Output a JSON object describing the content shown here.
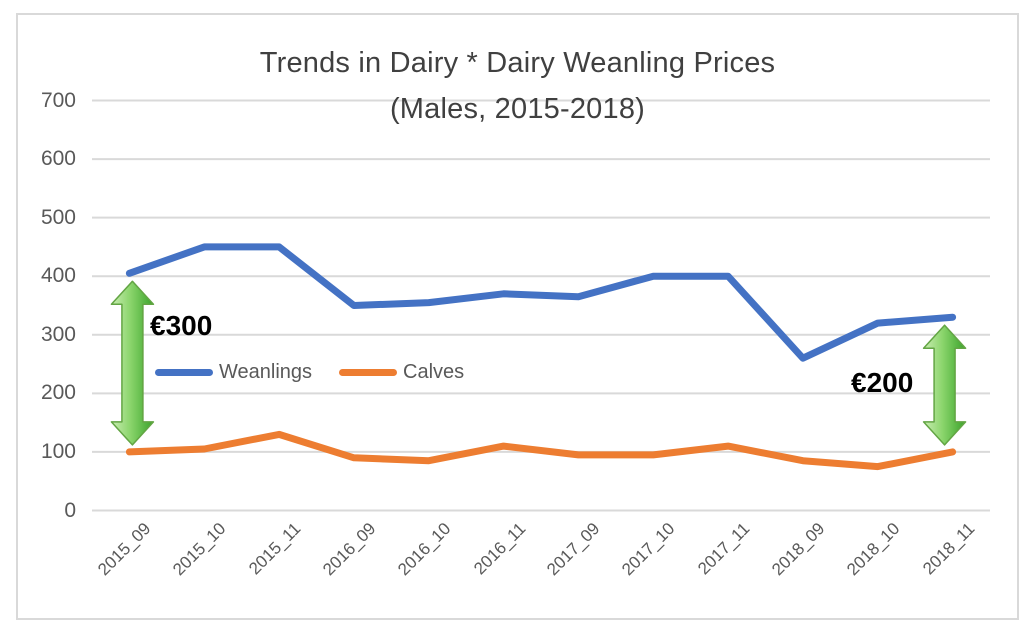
{
  "chart": {
    "title_line1": "Trends in Dairy * Dairy Weanling Prices",
    "title_line2": "(Males, 2015-2018)",
    "colors": {
      "title_text": "#404040",
      "axis_text": "#595959",
      "gridline": "#D9D9D9",
      "annotation_text": "#000000",
      "arrow_light_green": "#C9ECB2",
      "arrow_mid_green": "#8BD56C",
      "arrow_dark_green": "#3AA32B",
      "arrow_outline": "#63A544"
    }
  },
  "chart_data": {
    "type": "line",
    "title": "Trends in Dairy * Dairy Weanling Prices (Males, 2015-2018)",
    "categories": [
      "2015_09",
      "2015_10",
      "2015_11",
      "2016_09",
      "2016_10",
      "2016_11",
      "2017_09",
      "2017_10",
      "2017_11",
      "2018_09",
      "2018_10",
      "2018_11"
    ],
    "series": [
      {
        "name": "Weanlings",
        "color": "#4472C4",
        "values": [
          405,
          450,
          450,
          350,
          355,
          370,
          365,
          400,
          400,
          260,
          320,
          330
        ]
      },
      {
        "name": "Calves",
        "color": "#ED7D31",
        "values": [
          100,
          105,
          130,
          90,
          85,
          110,
          95,
          95,
          110,
          85,
          75,
          100
        ]
      }
    ],
    "ylim": [
      0,
      700
    ],
    "yticks": [
      0,
      100,
      200,
      300,
      400,
      500,
      600,
      700
    ],
    "grid": true,
    "legend_position": "inside-left-middle",
    "annotations": [
      {
        "text": "€300",
        "category": "2015_09",
        "from_value": 405,
        "to_value": 100
      },
      {
        "text": "€200",
        "category": "2018_11",
        "from_value": 330,
        "to_value": 100
      }
    ]
  }
}
